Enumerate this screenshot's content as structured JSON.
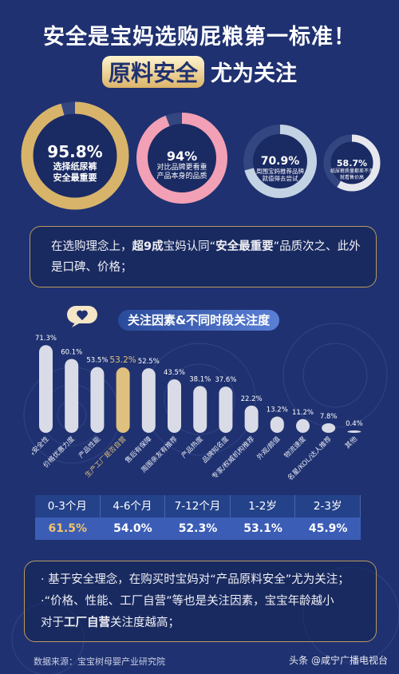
{
  "title_line1": "安全是宝妈选购屁粮第一标准！",
  "title_highlight": "原料安全",
  "title_line2_rest": "尤为关注",
  "rings": [
    {
      "pct": "95.8%",
      "caption1": "选择纸尿裤",
      "caption2": "安全最重要",
      "value": 95.8,
      "color": "#d8b46a"
    },
    {
      "pct": "94%",
      "caption1": "对比品牌更看重",
      "caption2": "产品本身的品质",
      "value": 94,
      "color": "#f2a0b5"
    },
    {
      "pct": "70.9%",
      "caption1": "周围宝妈推荐品牌",
      "caption2": "就值得去尝试",
      "value": 70.9,
      "color": "#c3d3e3"
    },
    {
      "pct": "58.7%",
      "caption1": "纸尿裤质量都差不多",
      "caption2": "就看售价高",
      "value": 58.7,
      "color": "#e6e7ee"
    }
  ],
  "box1": {
    "t1": "在选购理念上，",
    "b1": "超9成",
    "t2": "宝妈认同“",
    "b2": "安全最重要",
    "t3": "”品质次之、此外是口碑、价格；"
  },
  "chart_title": "关注因素&不同时段关注度",
  "chart_data": {
    "type": "bar",
    "title": "关注因素&不同时段关注度",
    "categories": [
      "产品原料安全性",
      "价格优惠力度",
      "产品性能",
      "生产工厂是否自营",
      "售后有保障",
      "周围亲友有推荐",
      "产品热度",
      "品牌知名度",
      "专家/权威机构推荐",
      "外观/颜值",
      "物流速度",
      "名星/KOL/达人推荐",
      "其他"
    ],
    "values": [
      71.3,
      60.1,
      53.5,
      53.2,
      52.5,
      43.5,
      38.1,
      37.6,
      22.2,
      13.2,
      11.2,
      7.8,
      0.4
    ],
    "value_labels": [
      "71.3%",
      "60.1%",
      "53.5%",
      "53.2%",
      "52.5%",
      "43.5%",
      "38.1%",
      "37.6%",
      "22.2%",
      "13.2%",
      "11.2%",
      "7.8%",
      "0.4%"
    ],
    "highlight_index": 3,
    "bar_color": "#d9dbe6",
    "highlight_color": "#e0c07f",
    "ylim": [
      0,
      80
    ]
  },
  "table": {
    "headers": [
      "0-3个月",
      "4-6个月",
      "7-12个月",
      "1-2岁",
      "2-3岁"
    ],
    "values": [
      "61.5%",
      "54.0%",
      "52.3%",
      "53.1%",
      "45.9%"
    ],
    "highlight_color": "#f0c46a"
  },
  "box2": {
    "l1a": "· 基于安全理念，在购买时宝妈对“产品原料安全”尤为关注；",
    "l2a": "·“价格、性能、工厂自营”等也是关注因素，宝宝年龄越小",
    "l3a": "对于",
    "l3b": "工厂自营",
    "l3c": "关注度越高；"
  },
  "footer": "数据来源：宝宝树母婴产业研究院",
  "watermark": "头条 @咸宁广播电视台"
}
